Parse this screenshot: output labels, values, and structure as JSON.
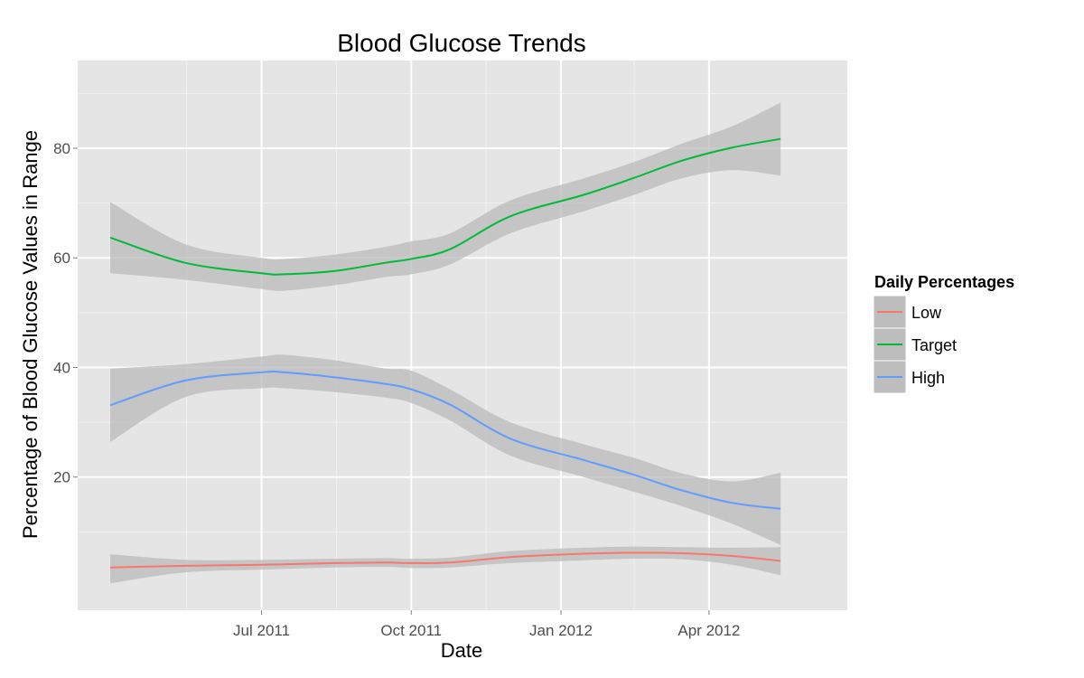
{
  "chart_data": {
    "type": "line",
    "title": "Blood Glucose Trends",
    "xlabel": "Date",
    "ylabel": "Percentage of Blood Glucose Values in Range",
    "xlim": [
      "2011-03-10",
      "2012-06-25"
    ],
    "ylim": [
      -4.3,
      96
    ],
    "x_ticks": [
      {
        "date": "2011-07-01",
        "label": "Jul 2011"
      },
      {
        "date": "2011-10-01",
        "label": "Oct 2011"
      },
      {
        "date": "2012-01-01",
        "label": "Jan 2012"
      },
      {
        "date": "2012-04-01",
        "label": "Apr 2012"
      }
    ],
    "x_minor_ticks": [
      "2011-05-16",
      "2011-08-16",
      "2011-11-16",
      "2012-02-15"
    ],
    "y_ticks": [
      20,
      40,
      60,
      80
    ],
    "y_minor_ticks": [
      10,
      30,
      50,
      70,
      90
    ],
    "grid": true,
    "panel_background": "#e5e5e5",
    "grid_color": "#ffffff",
    "band_color": "#bdbdbd",
    "legend": {
      "title": "Daily Percentages",
      "position": "right",
      "entries": [
        "Low",
        "Target",
        "High"
      ]
    },
    "series": [
      {
        "name": "Low",
        "color": "#f8766d",
        "x": [
          "2011-03-30",
          "2011-05-15",
          "2011-07-01",
          "2011-08-15",
          "2011-09-15",
          "2011-10-01",
          "2011-10-25",
          "2011-12-01",
          "2012-01-15",
          "2012-02-15",
          "2012-03-15",
          "2012-04-15",
          "2012-05-15"
        ],
        "y": [
          3.5,
          3.8,
          4.0,
          4.3,
          4.4,
          4.3,
          4.4,
          5.4,
          6.0,
          6.2,
          6.1,
          5.6,
          4.7
        ],
        "lower": [
          0.6,
          2.6,
          3.1,
          3.5,
          3.6,
          3.4,
          3.5,
          4.3,
          4.8,
          5.1,
          5.0,
          4.0,
          2.1
        ],
        "upper": [
          5.9,
          4.9,
          4.9,
          5.1,
          5.2,
          5.1,
          5.3,
          6.5,
          7.1,
          7.3,
          7.2,
          7.1,
          7.2
        ]
      },
      {
        "name": "Target",
        "color": "#00ba38",
        "x": [
          "2011-03-30",
          "2011-05-15",
          "2011-07-01",
          "2011-07-15",
          "2011-08-15",
          "2011-09-15",
          "2011-10-01",
          "2011-10-25",
          "2011-12-01",
          "2012-01-15",
          "2012-02-15",
          "2012-03-15",
          "2012-04-15",
          "2012-05-15"
        ],
        "y": [
          63.7,
          59.1,
          57.2,
          57.0,
          57.6,
          59.1,
          59.8,
          61.6,
          67.6,
          71.5,
          74.6,
          77.7,
          80.1,
          81.7
        ],
        "lower": [
          57.2,
          56.0,
          54.3,
          54.0,
          55.0,
          56.5,
          57.0,
          58.8,
          64.5,
          68.5,
          71.5,
          74.5,
          76.0,
          75.0
        ],
        "upper": [
          70.2,
          62.5,
          60.0,
          59.8,
          60.6,
          62.0,
          63.0,
          64.5,
          70.5,
          74.5,
          77.5,
          80.8,
          84.0,
          88.3
        ]
      },
      {
        "name": "High",
        "color": "#619cff",
        "x": [
          "2011-03-30",
          "2011-05-15",
          "2011-07-01",
          "2011-07-15",
          "2011-08-15",
          "2011-09-15",
          "2011-10-01",
          "2011-10-25",
          "2011-12-01",
          "2012-01-15",
          "2012-02-15",
          "2012-03-15",
          "2012-04-15",
          "2012-05-15"
        ],
        "y": [
          33.1,
          37.6,
          39.1,
          39.1,
          38.2,
          37.0,
          36.0,
          33.2,
          27.0,
          23.1,
          20.4,
          17.6,
          15.3,
          14.2
        ],
        "lower": [
          26.4,
          34.6,
          36.2,
          36.2,
          35.5,
          34.5,
          33.5,
          30.3,
          23.9,
          20.0,
          17.3,
          14.7,
          11.5,
          7.6
        ],
        "upper": [
          39.8,
          40.6,
          42.0,
          42.3,
          41.3,
          39.8,
          39.4,
          36.0,
          30.0,
          26.0,
          23.5,
          20.7,
          19.2,
          20.8
        ]
      }
    ]
  }
}
